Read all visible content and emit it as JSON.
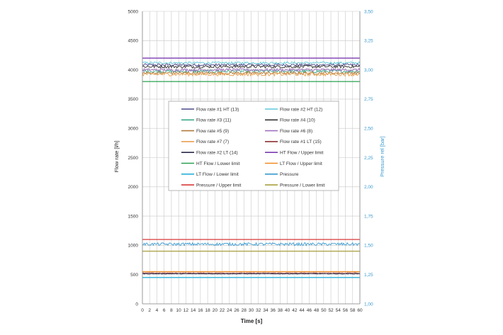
{
  "chart_data": {
    "type": "line",
    "xlabel": "Time [s]",
    "ylabel_left": "Flow rate [l/h]",
    "ylabel_right": "Pressure rel [bar]",
    "xlim": [
      0,
      60
    ],
    "ylim_left": [
      0,
      5000
    ],
    "ylim_right": [
      1.0,
      3.5
    ],
    "x_ticks": [
      "0",
      "2",
      "4",
      "6",
      "8",
      "10",
      "12",
      "14",
      "16",
      "18",
      "20",
      "22",
      "24",
      "26",
      "28",
      "30",
      "32",
      "34",
      "36",
      "38",
      "40",
      "42",
      "44",
      "46",
      "48",
      "50",
      "52",
      "54",
      "56",
      "58",
      "60"
    ],
    "y_left_ticks": [
      "0",
      "500",
      "1000",
      "1500",
      "2000",
      "2500",
      "3000",
      "3500",
      "4000",
      "4500",
      "5000"
    ],
    "y_right_ticks": [
      "1,00",
      "1,25",
      "1,50",
      "1,75",
      "2,00",
      "2,25",
      "2,50",
      "2,75",
      "3,00",
      "3,25",
      "3,50"
    ],
    "grid": true,
    "legend_placement": "center",
    "series": [
      {
        "name": "Flow rate #1 HT (13)",
        "color": "#4a4a8a",
        "axis": "left",
        "base": 4085,
        "noise": 22
      },
      {
        "name": "Flow rate #2 HT (12)",
        "color": "#5ec8d8",
        "axis": "left",
        "base": 4120,
        "noise": 18
      },
      {
        "name": "Flow rate #3 (11)",
        "color": "#3aa88a",
        "axis": "left",
        "base": 3975,
        "noise": 28
      },
      {
        "name": "Flow rate #4 (10)",
        "color": "#333333",
        "axis": "left",
        "base": 4055,
        "noise": 25
      },
      {
        "name": "Flow rate #5 (9)",
        "color": "#b07a3a",
        "axis": "left",
        "base": 3945,
        "noise": 25
      },
      {
        "name": "Flow rate #6 (8)",
        "color": "#a070c0",
        "axis": "left",
        "base": 4000,
        "noise": 25
      },
      {
        "name": "Flow rate #7 (7)",
        "color": "#e8a050",
        "axis": "left",
        "base": 3925,
        "noise": 30
      },
      {
        "name": "Flow rate #1 LT (15)",
        "color": "#8a3030",
        "axis": "left",
        "base": 525,
        "noise": 6
      },
      {
        "name": "Flow rate #2 LT (14)",
        "color": "#2a2a4a",
        "axis": "left",
        "base": 515,
        "noise": 6
      },
      {
        "name": "HT Flow / Upper limit",
        "color": "#7a3ab0",
        "axis": "left",
        "base": 4200,
        "noise": 0
      },
      {
        "name": "HT Flow / Lower limit",
        "color": "#2aa050",
        "axis": "left",
        "base": 3800,
        "noise": 0
      },
      {
        "name": "LT Flow / Upper limit",
        "color": "#f08a20",
        "axis": "left",
        "base": 550,
        "noise": 0
      },
      {
        "name": "LT Flow / Lower limit",
        "color": "#2ab0d8",
        "axis": "left",
        "base": 450,
        "noise": 0
      },
      {
        "name": "Pressure",
        "color": "#3a9ad1",
        "axis": "right",
        "base": 1.51,
        "noise": 0.012
      },
      {
        "name": "Pressure / Upper limit",
        "color": "#d83a3a",
        "axis": "right",
        "base": 1.55,
        "noise": 0
      },
      {
        "name": "Pressure / Lower limit",
        "color": "#a8a040",
        "axis": "right",
        "base": 1.45,
        "noise": 0
      }
    ]
  },
  "legend_text_colors": {
    "HT Flow / Upper limit": "#7a3ab0",
    "HT Flow / Lower limit": "#2aa050",
    "LT Flow / Upper limit": "#f08a20",
    "LT Flow / Lower limit": "#2ab0d8",
    "Pressure / Upper limit": "#d83a3a",
    "Pressure / Lower limit": "#8a8a30"
  }
}
